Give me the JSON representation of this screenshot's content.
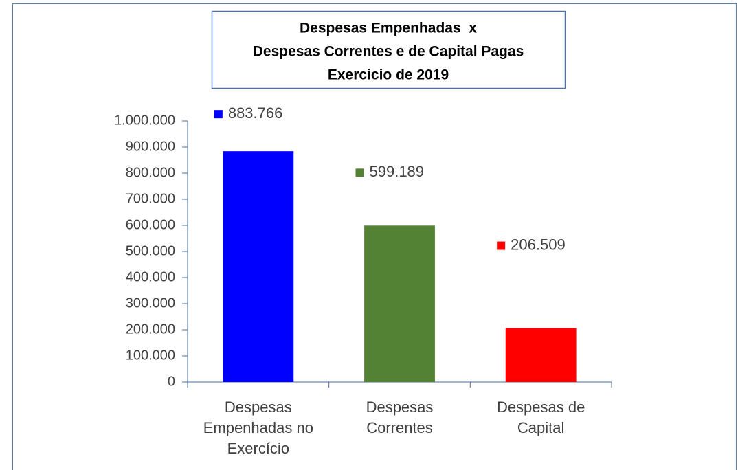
{
  "chart_data": {
    "type": "bar",
    "title": [
      "Despesas Empenhadas  x",
      "Despesas Correntes e de Capital Pagas",
      "Exercicio de 2019"
    ],
    "categories": [
      "Despesas Empenhadas no Exercício",
      "Despesas Correntes",
      "Despesas de Capital"
    ],
    "values": [
      883766,
      599189,
      206509
    ],
    "value_labels": [
      "883.766",
      "599.189",
      "206.509"
    ],
    "colors": [
      "#0000ff",
      "#548235",
      "#ff0000"
    ],
    "ylim": [
      0,
      1000000
    ],
    "yticks": [
      0,
      {
        "value": 100000,
        "label": "100.000"
      },
      {
        "value": 200000,
        "label": "200.000"
      },
      {
        "value": 300000,
        "label": "300.000"
      },
      {
        "value": 400000,
        "label": "400.000"
      },
      {
        "value": 500000,
        "label": "500.000"
      },
      {
        "value": 600000,
        "label": "600.000"
      },
      {
        "value": 700000,
        "label": "700.000"
      },
      {
        "value": 800000,
        "label": "800.000"
      },
      {
        "value": 900000,
        "label": "900.000"
      },
      {
        "value": 1000000,
        "label": "1.000.000"
      }
    ],
    "grid": false
  }
}
